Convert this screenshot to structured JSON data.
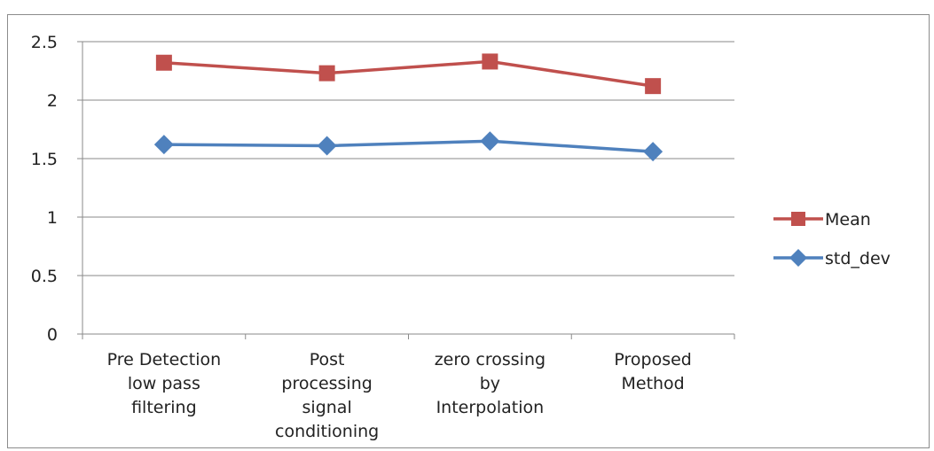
{
  "chart_data": {
    "type": "line",
    "categories": [
      [
        "Pre Detection",
        "low pass",
        "filtering"
      ],
      [
        "Post",
        "processing",
        "signal",
        "conditioning"
      ],
      [
        "zero crossing",
        "by",
        "Interpolation"
      ],
      [
        "Proposed",
        "Method"
      ]
    ],
    "series": [
      {
        "name": "Mean",
        "values": [
          2.32,
          2.23,
          2.33,
          2.12
        ],
        "color": "#c0504d",
        "marker": "square"
      },
      {
        "name": "std_dev",
        "values": [
          1.62,
          1.61,
          1.65,
          1.56
        ],
        "color": "#4f81bd",
        "marker": "diamond"
      }
    ],
    "ylim": [
      0,
      2.5
    ],
    "yticks": [
      "0",
      "0.5",
      "1",
      "1.5",
      "2",
      "2.5"
    ],
    "grid": true,
    "legend_position": "right",
    "gridline_color": "#8a8a8a",
    "axis_color": "#8a8a8a"
  }
}
